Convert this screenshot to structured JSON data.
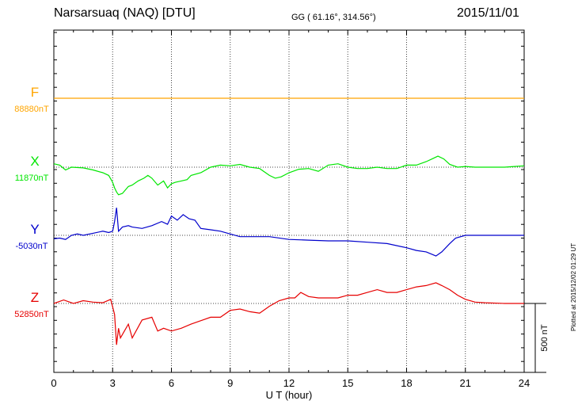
{
  "header": {
    "station": "Narsarsuaq (NAQ)  [DTU]",
    "coords": "GG ( 61.16°, 314.56°)",
    "date": "2015/11/01"
  },
  "plotted_note": "Plotted at 2015/12/02 01:29 UT",
  "chart_data": {
    "type": "line",
    "xlabel": "U T (hour)",
    "xlim": [
      0,
      24
    ],
    "xticks": [
      "0",
      "3",
      "6",
      "9",
      "12",
      "15",
      "18",
      "21",
      "24"
    ],
    "scale_bar": "500 nT",
    "colors": {
      "F": "#ffa500",
      "X": "#00e600",
      "Y": "#0000cc",
      "Z": "#e60000"
    },
    "series": [
      {
        "name": "F",
        "baseline_label": "88880nT",
        "x": [
          0,
          24
        ],
        "y": [
          0,
          0
        ]
      },
      {
        "name": "X",
        "baseline_label": "11870nT",
        "x": [
          0,
          0.3,
          0.6,
          0.9,
          1.5,
          2.0,
          2.5,
          2.8,
          3.0,
          3.1,
          3.2,
          3.3,
          3.5,
          3.8,
          4.0,
          4.3,
          4.6,
          4.8,
          5.0,
          5.3,
          5.6,
          5.8,
          6.0,
          6.2,
          6.5,
          6.8,
          7.0,
          7.5,
          8.0,
          8.5,
          9.0,
          9.5,
          10.0,
          10.5,
          11.0,
          11.3,
          11.6,
          12.0,
          12.5,
          13.0,
          13.5,
          14.0,
          14.5,
          15.0,
          15.5,
          16.0,
          16.5,
          17.0,
          17.5,
          18.0,
          18.5,
          19.0,
          19.3,
          19.6,
          19.9,
          20.2,
          20.6,
          21.0,
          21.5,
          22.0,
          22.5,
          23.0,
          23.5,
          24.0
        ],
        "y": [
          25,
          15,
          -20,
          0,
          -5,
          -20,
          -40,
          -60,
          -110,
          -150,
          -180,
          -200,
          -190,
          -140,
          -130,
          -100,
          -80,
          -60,
          -80,
          -130,
          -100,
          -150,
          -120,
          -110,
          -100,
          -90,
          -60,
          -40,
          0,
          15,
          10,
          20,
          0,
          -10,
          -60,
          -80,
          -70,
          -40,
          -15,
          -10,
          -30,
          15,
          25,
          0,
          -10,
          -10,
          0,
          -10,
          -10,
          15,
          15,
          40,
          60,
          80,
          60,
          20,
          0,
          5,
          0,
          0,
          0,
          0,
          5,
          10
        ]
      },
      {
        "name": "Y",
        "baseline_label": "-5030nT",
        "x": [
          0,
          0.3,
          0.6,
          0.9,
          1.2,
          1.5,
          2.0,
          2.5,
          2.8,
          3.0,
          3.1,
          3.2,
          3.3,
          3.5,
          3.8,
          4.0,
          4.5,
          5.0,
          5.5,
          5.8,
          6.0,
          6.3,
          6.6,
          6.9,
          7.2,
          7.5,
          8.0,
          8.5,
          9.0,
          9.5,
          10.0,
          11.0,
          12.0,
          13.0,
          14.0,
          15.0,
          16.0,
          17.0,
          18.0,
          18.5,
          19.0,
          19.5,
          19.8,
          20.2,
          20.5,
          21.0,
          21.5,
          22.0,
          23.0,
          24.0
        ],
        "y": [
          -25,
          -20,
          -30,
          0,
          10,
          0,
          15,
          30,
          20,
          30,
          100,
          200,
          30,
          60,
          70,
          60,
          50,
          70,
          100,
          80,
          140,
          110,
          150,
          120,
          110,
          50,
          40,
          30,
          10,
          -10,
          -10,
          -10,
          -30,
          -35,
          -40,
          -40,
          -50,
          -60,
          -90,
          -110,
          -120,
          -150,
          -120,
          -60,
          -20,
          0,
          0,
          0,
          0,
          0
        ]
      },
      {
        "name": "Z",
        "baseline_label": "52850nT",
        "x": [
          0,
          0.5,
          1.0,
          1.5,
          2.0,
          2.5,
          2.9,
          3.1,
          3.2,
          3.3,
          3.4,
          3.6,
          3.8,
          4.0,
          4.5,
          5.0,
          5.3,
          5.6,
          6.0,
          6.5,
          7.0,
          8.0,
          8.5,
          9.0,
          9.5,
          10.0,
          10.5,
          11.0,
          11.5,
          12.0,
          12.3,
          12.6,
          13.0,
          13.5,
          14.0,
          14.5,
          15.0,
          15.5,
          16.0,
          16.5,
          17.0,
          17.5,
          18.0,
          18.5,
          19.0,
          19.5,
          19.8,
          20.2,
          20.6,
          21.0,
          21.5,
          22.0,
          23.0,
          24.0
        ],
        "y": [
          0,
          25,
          0,
          20,
          10,
          5,
          30,
          -80,
          -300,
          -180,
          -250,
          -200,
          -150,
          -250,
          -120,
          -100,
          -200,
          -180,
          -200,
          -180,
          -150,
          -100,
          -100,
          -50,
          -40,
          -60,
          -70,
          -20,
          20,
          40,
          40,
          80,
          50,
          40,
          40,
          40,
          60,
          60,
          80,
          100,
          80,
          80,
          100,
          120,
          130,
          150,
          130,
          100,
          60,
          30,
          10,
          5,
          0,
          0
        ]
      }
    ]
  }
}
